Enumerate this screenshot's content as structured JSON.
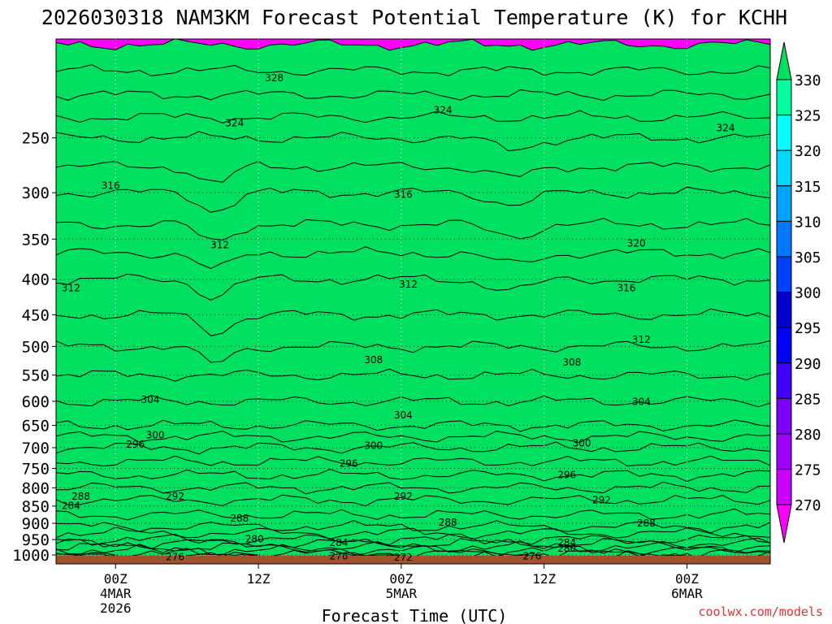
{
  "chart_data": {
    "type": "heatmap",
    "title": "2026030318 NAM3KM Forecast Potential Temperature (K) for KCHH",
    "xlabel": "Forecast Time (UTC)",
    "ylabel": "",
    "x_axis": {
      "range_hours": [
        -6,
        66
      ],
      "ticks": [
        {
          "hour": 0,
          "lines": [
            "00Z",
            "4MAR",
            "2026"
          ]
        },
        {
          "hour": 14.4,
          "lines": [
            "12Z"
          ]
        },
        {
          "hour": 28.8,
          "lines": [
            "00Z",
            "5MAR"
          ]
        },
        {
          "hour": 43.2,
          "lines": [
            "12Z"
          ]
        },
        {
          "hour": 57.6,
          "lines": [
            "00Z",
            "6MAR"
          ]
        }
      ]
    },
    "y_axis": {
      "unit": "hPa",
      "range": [
        1030,
        180
      ],
      "ticks": [
        250,
        300,
        350,
        400,
        450,
        500,
        550,
        600,
        650,
        700,
        750,
        800,
        850,
        900,
        950,
        1000
      ]
    },
    "colorbar": {
      "levels": [
        270,
        275,
        280,
        285,
        290,
        295,
        300,
        305,
        310,
        315,
        320,
        325,
        330
      ],
      "colors": [
        "#ff00ff",
        "#cc00ff",
        "#a000ff",
        "#8000ff",
        "#4000ff",
        "#0000ff",
        "#0000cc",
        "#0040ff",
        "#0078ff",
        "#00a4ff",
        "#00d8ff",
        "#00ffff",
        "#00ffa0",
        "#00e060"
      ]
    },
    "theta_profile": [
      {
        "p": 1000,
        "theta": 273
      },
      {
        "p": 980,
        "theta": 277
      },
      {
        "p": 950,
        "theta": 282
      },
      {
        "p": 900,
        "theta": 287
      },
      {
        "p": 850,
        "theta": 289
      },
      {
        "p": 800,
        "theta": 292
      },
      {
        "p": 750,
        "theta": 295
      },
      {
        "p": 700,
        "theta": 298
      },
      {
        "p": 650,
        "theta": 302
      },
      {
        "p": 600,
        "theta": 304
      },
      {
        "p": 550,
        "theta": 306
      },
      {
        "p": 500,
        "theta": 308
      },
      {
        "p": 450,
        "theta": 310
      },
      {
        "p": 400,
        "theta": 312
      },
      {
        "p": 350,
        "theta": 315
      },
      {
        "p": 300,
        "theta": 318
      },
      {
        "p": 250,
        "theta": 322
      },
      {
        "p": 200,
        "theta": 328
      }
    ],
    "contour_labels": [
      {
        "text": "328",
        "hour": 16,
        "p": 205
      },
      {
        "text": "324",
        "hour": 12,
        "p": 238
      },
      {
        "text": "324",
        "hour": 33,
        "p": 228
      },
      {
        "text": "324",
        "hour": 61.5,
        "p": 242
      },
      {
        "text": "316",
        "hour": -0.5,
        "p": 293
      },
      {
        "text": "316",
        "hour": 29,
        "p": 302
      },
      {
        "text": "320",
        "hour": 52.5,
        "p": 355
      },
      {
        "text": "312",
        "hour": 10.5,
        "p": 357
      },
      {
        "text": "312",
        "hour": -4.5,
        "p": 412
      },
      {
        "text": "312",
        "hour": 29.5,
        "p": 407
      },
      {
        "text": "316",
        "hour": 51.5,
        "p": 412
      },
      {
        "text": "312",
        "hour": 53,
        "p": 489
      },
      {
        "text": "308",
        "hour": 26,
        "p": 523
      },
      {
        "text": "308",
        "hour": 46,
        "p": 527
      },
      {
        "text": "304",
        "hour": 3.5,
        "p": 597
      },
      {
        "text": "304",
        "hour": 29,
        "p": 628
      },
      {
        "text": "304",
        "hour": 53,
        "p": 601
      },
      {
        "text": "300",
        "hour": 4,
        "p": 671
      },
      {
        "text": "300",
        "hour": 26,
        "p": 695
      },
      {
        "text": "300",
        "hour": 47,
        "p": 690
      },
      {
        "text": "296",
        "hour": 2,
        "p": 693
      },
      {
        "text": "296",
        "hour": 23.5,
        "p": 738
      },
      {
        "text": "296",
        "hour": 45.5,
        "p": 766
      },
      {
        "text": "292",
        "hour": 6,
        "p": 823
      },
      {
        "text": "292",
        "hour": 29,
        "p": 823
      },
      {
        "text": "292",
        "hour": 49,
        "p": 833
      },
      {
        "text": "288",
        "hour": -3.5,
        "p": 823
      },
      {
        "text": "288",
        "hour": 12.5,
        "p": 885
      },
      {
        "text": "288",
        "hour": 33.5,
        "p": 898
      },
      {
        "text": "288",
        "hour": 53.5,
        "p": 900
      },
      {
        "text": "284",
        "hour": -4.5,
        "p": 849
      },
      {
        "text": "284",
        "hour": 22.5,
        "p": 960
      },
      {
        "text": "284",
        "hour": 45.5,
        "p": 960
      },
      {
        "text": "280",
        "hour": 14,
        "p": 948
      },
      {
        "text": "280",
        "hour": 45.5,
        "p": 978
      },
      {
        "text": "276",
        "hour": 6,
        "p": 1006
      },
      {
        "text": "276",
        "hour": 22.5,
        "p": 1004
      },
      {
        "text": "276",
        "hour": 42,
        "p": 1004
      },
      {
        "text": "272",
        "hour": 29,
        "p": 1008
      }
    ],
    "ground_color": "#a0522d"
  },
  "credit": "coolwx.com/models"
}
